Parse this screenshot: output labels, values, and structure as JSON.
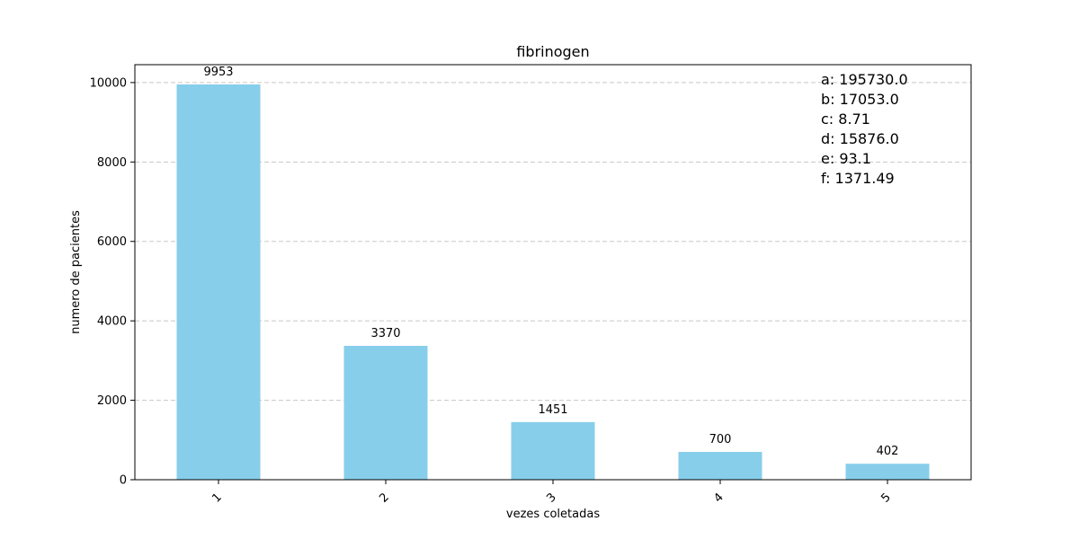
{
  "chart_data": {
    "type": "bar",
    "title": "fibrinogen",
    "xlabel": "vezes coletadas",
    "ylabel": "numero de pacientes",
    "categories": [
      "1",
      "2",
      "3",
      "4",
      "5"
    ],
    "values": [
      9953,
      3370,
      1451,
      700,
      402
    ],
    "data_labels": [
      "9953",
      "3370",
      "1451",
      "700",
      "402"
    ],
    "ylim": [
      0,
      10450
    ],
    "yticks": [
      0,
      2000,
      4000,
      6000,
      8000,
      10000
    ],
    "ytick_labels": [
      "0",
      "2000",
      "4000",
      "6000",
      "8000",
      "10000"
    ],
    "xtick_rotation": 45,
    "grid": "y-dashed",
    "bar_color": "#87CEEB",
    "grid_color": "#c8c8c8",
    "annotation_lines": [
      "a: 195730.0",
      "b: 17053.0",
      "c: 8.71",
      "d: 15876.0",
      "e: 93.1",
      "f: 1371.49"
    ]
  }
}
